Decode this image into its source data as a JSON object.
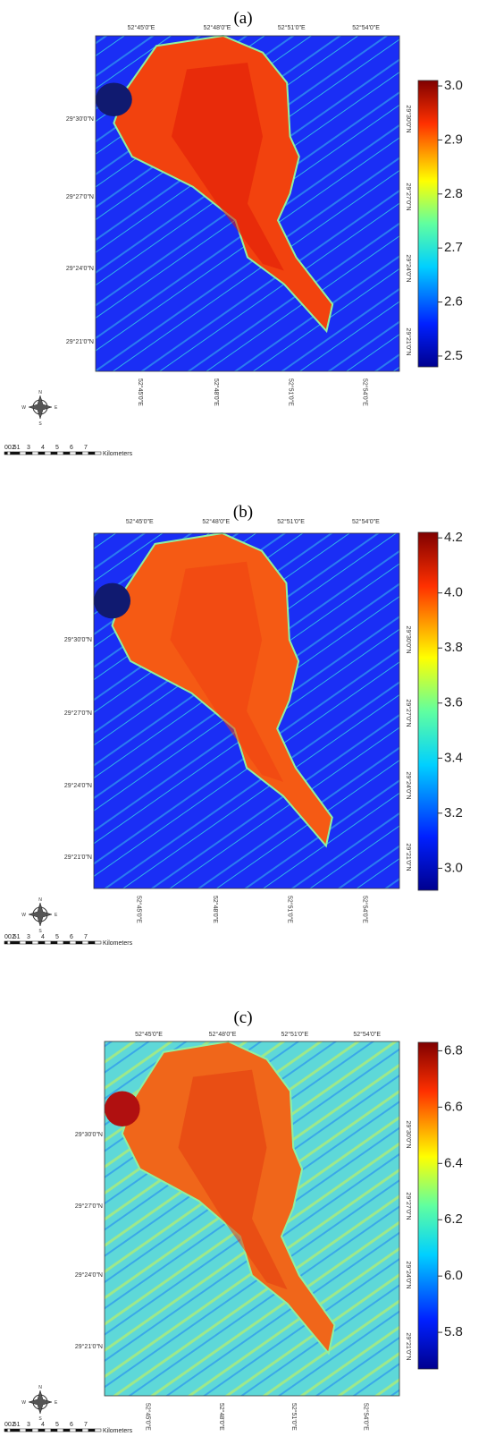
{
  "panels": [
    {
      "label": "(a)",
      "lon_labels": [
        "52°45'0\"E",
        "52°48'0\"E",
        "52°51'0\"E",
        "52°54'0\"E"
      ],
      "lat_labels": [
        "29°30'0\"N",
        "29°27'0\"N",
        "29°24'0\"N",
        "29°21'0\"N"
      ],
      "colorbar": {
        "range": [
          2.48,
          3.01
        ],
        "ticks": [
          {
            "value": 3.0,
            "label": "3.0"
          },
          {
            "value": 2.9,
            "label": "2.9"
          },
          {
            "value": 2.8,
            "label": "2.8"
          },
          {
            "value": 2.7,
            "label": "2.7"
          },
          {
            "value": 2.6,
            "label": "2.6"
          },
          {
            "value": 2.5,
            "label": "2.5"
          }
        ]
      },
      "compass": [
        "N",
        "E",
        "S",
        "W"
      ],
      "scale": {
        "ticks": [
          "00.51",
          2,
          3,
          4,
          5,
          6,
          7
        ],
        "unit": "Kilometers"
      }
    },
    {
      "label": "(b)",
      "lon_labels": [
        "52°45'0\"E",
        "52°48'0\"E",
        "52°51'0\"E",
        "52°54'0\"E"
      ],
      "lat_labels": [
        "29°30'0\"N",
        "29°27'0\"N",
        "29°24'0\"N",
        "29°21'0\"N"
      ],
      "colorbar": {
        "range": [
          2.92,
          4.22
        ],
        "ticks": [
          {
            "value": 4.2,
            "label": "4.2"
          },
          {
            "value": 4.0,
            "label": "4.0"
          },
          {
            "value": 3.8,
            "label": "3.8"
          },
          {
            "value": 3.6,
            "label": "3.6"
          },
          {
            "value": 3.4,
            "label": "3.4"
          },
          {
            "value": 3.2,
            "label": "3.2"
          },
          {
            "value": 3.0,
            "label": "3.0"
          }
        ]
      },
      "compass": [
        "N",
        "E",
        "S",
        "W"
      ],
      "scale": {
        "ticks": [
          "00.51",
          2,
          3,
          4,
          5,
          6,
          7
        ],
        "unit": "Kilometers"
      }
    },
    {
      "label": "(c)",
      "lon_labels": [
        "52°45'0\"E",
        "52°48'0\"E",
        "52°51'0\"E",
        "52°54'0\"E"
      ],
      "lat_labels": [
        "29°30'0\"N",
        "29°27'0\"N",
        "29°24'0\"N",
        "29°21'0\"N"
      ],
      "colorbar": {
        "range": [
          5.67,
          6.83
        ],
        "ticks": [
          {
            "value": 6.8,
            "label": "6.8"
          },
          {
            "value": 6.6,
            "label": "6.6"
          },
          {
            "value": 6.4,
            "label": "6.4"
          },
          {
            "value": 6.2,
            "label": "6.2"
          },
          {
            "value": 6.0,
            "label": "6.0"
          },
          {
            "value": 5.8,
            "label": "5.8"
          }
        ]
      },
      "compass": [
        "N",
        "E",
        "S",
        "W"
      ],
      "scale": {
        "ticks": [
          "00.51",
          2,
          3,
          4,
          5,
          6,
          7
        ],
        "unit": "Kilometers"
      }
    }
  ]
}
